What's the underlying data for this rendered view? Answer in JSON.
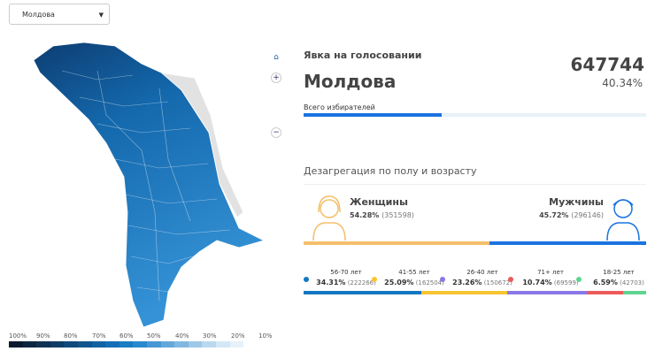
{
  "region_select": {
    "value": "Молдова"
  },
  "map": {
    "legend_labels": [
      "100%",
      "90%",
      "80%",
      "70%",
      "60%",
      "50%",
      "40%",
      "30%",
      "20%",
      "10%"
    ],
    "scale_colors": [
      "#0b1a2e",
      "#0d2540",
      "#0e3152",
      "#0f3d66",
      "#10497a",
      "#11568e",
      "#1263a2",
      "#146fb5",
      "#1a7cc4",
      "#2a89cc",
      "#4798d3",
      "#64a8da",
      "#80b8e1",
      "#9dc8e8",
      "#b9d8ef",
      "#d4e7f6",
      "#e6f1fa"
    ],
    "controls": [
      "home-icon",
      "zoom-in-icon",
      "zoom-out-icon"
    ]
  },
  "turnout": {
    "heading": "Явка на голосовании",
    "region": "Молдова",
    "count": "647744",
    "percent": "40.34%",
    "voters_label": "Всего избирателей",
    "fill": 0.4034
  },
  "gender": {
    "heading": "Дезагрегация по полу и возрасту",
    "women": {
      "label": "Женщины",
      "percent": "54.28%",
      "count": "(351598)",
      "color": "#f5be6b",
      "share": 54.28
    },
    "men": {
      "label": "Мужчины",
      "percent": "45.72%",
      "count": "(296146)",
      "color": "#1a73e0",
      "share": 45.72
    }
  },
  "ages": [
    {
      "label": "56-70 лет",
      "percent": "34.31%",
      "count": "(222266)",
      "color": "#1277c2",
      "share": 34.31
    },
    {
      "label": "41-55 лет",
      "percent": "25.09%",
      "count": "(162504)",
      "color": "#f7c531",
      "share": 25.09
    },
    {
      "label": "26-40 лет",
      "percent": "23.26%",
      "count": "(150672)",
      "color": "#8a78e8",
      "share": 23.26
    },
    {
      "label": "71+ лет",
      "percent": "10.74%",
      "count": "(69599)",
      "color": "#ec5a5a",
      "share": 10.74
    },
    {
      "label": "18-25 лет",
      "percent": "6.59%",
      "count": "(42703)",
      "color": "#5fd492",
      "share": 6.59
    }
  ]
}
